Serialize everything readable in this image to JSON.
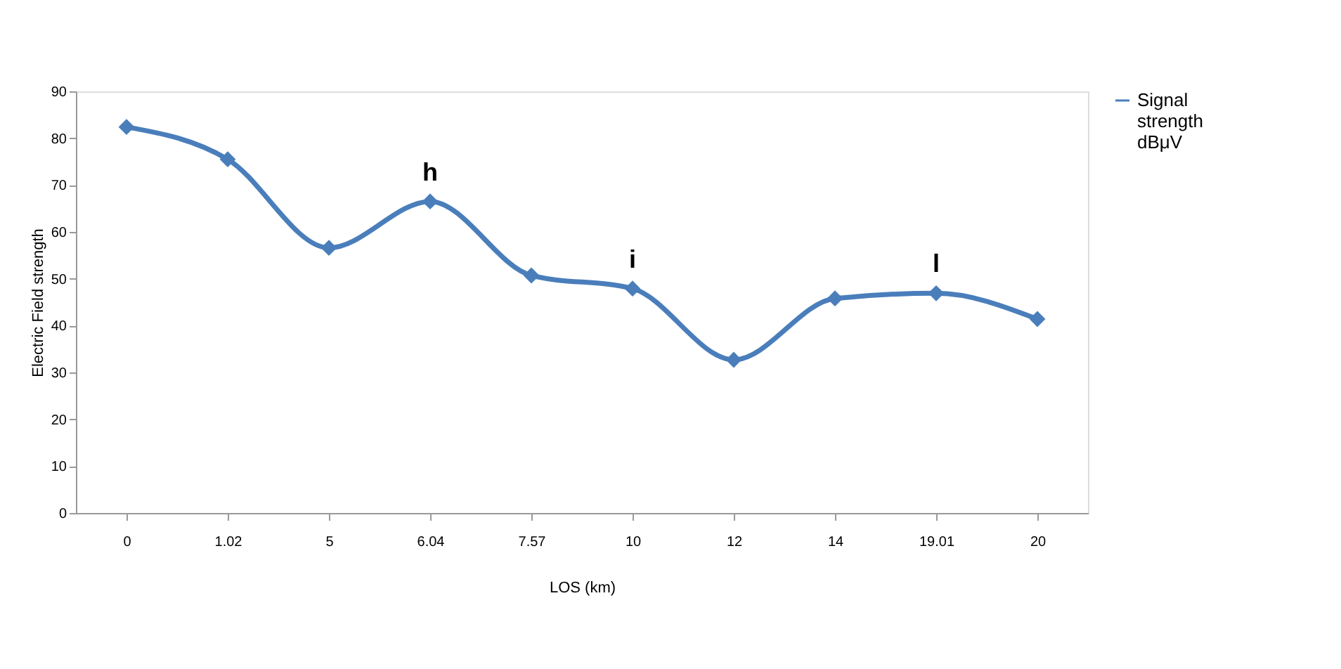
{
  "chart_data": {
    "type": "line",
    "xlabel": "LOS (km)",
    "ylabel": "Electric Field strength",
    "categories": [
      "0",
      "1.02",
      "5",
      "6.04",
      "7.57",
      "10",
      "12",
      "14",
      "19.01",
      "20"
    ],
    "series": [
      {
        "name": "Signal strength dBμV",
        "color": "#4a7ebb",
        "values": [
          82.4,
          75.5,
          56.6,
          66.5,
          50.7,
          47.9,
          32.7,
          45.8,
          46.9,
          41.4
        ]
      }
    ],
    "ylim": [
      0,
      90
    ],
    "yticks": [
      0,
      10,
      20,
      30,
      40,
      50,
      60,
      70,
      80,
      90
    ],
    "annotations": [
      {
        "text": "h",
        "x": "6.04",
        "y": 66.5
      },
      {
        "text": "i",
        "x": "10",
        "y": 47.9
      },
      {
        "text": "l",
        "x": "19.01",
        "y": 46.9
      }
    ],
    "marker": "diamond",
    "line_style": "solid",
    "grid": false,
    "legend": "right"
  }
}
